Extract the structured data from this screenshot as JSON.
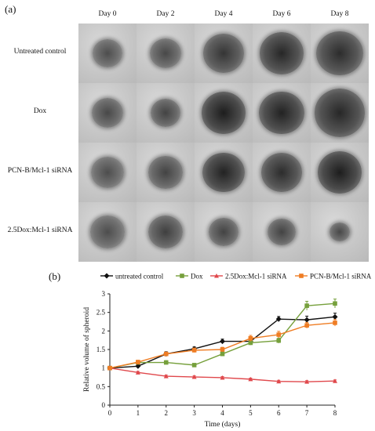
{
  "panel_a": {
    "label": "(a)",
    "days": [
      "Day 0",
      "Day 2",
      "Day 4",
      "Day 6",
      "Day 8"
    ],
    "rows": [
      {
        "label": "Untreated control",
        "size": [
          0.52,
          0.56,
          0.72,
          0.78,
          0.82
        ],
        "dark": [
          0.35,
          0.4,
          0.6,
          0.75,
          0.7
        ]
      },
      {
        "label": "Dox",
        "size": [
          0.56,
          0.54,
          0.78,
          0.8,
          0.9
        ],
        "dark": [
          0.4,
          0.45,
          0.85,
          0.8,
          0.75
        ]
      },
      {
        "label": "PCN-B/Mcl-1 siRNA",
        "size": [
          0.58,
          0.6,
          0.74,
          0.72,
          0.78
        ],
        "dark": [
          0.35,
          0.45,
          0.8,
          0.7,
          0.85
        ]
      },
      {
        "label": "2.5Dox:Mcl-1 siRNA",
        "size": [
          0.6,
          0.62,
          0.52,
          0.5,
          0.36
        ],
        "dark": [
          0.35,
          0.5,
          0.45,
          0.45,
          0.4
        ]
      }
    ]
  },
  "chart_data": {
    "type": "line",
    "panel_label": "(b)",
    "xlabel": "Time (days)",
    "ylabel": "Relative volume of spheroid",
    "x": [
      0,
      1,
      2,
      3,
      4,
      5,
      6,
      7,
      8
    ],
    "xlim": [
      0,
      8
    ],
    "ylim": [
      0,
      3
    ],
    "xticks": [
      "0",
      "1",
      "2",
      "3",
      "4",
      "5",
      "6",
      "7",
      "8"
    ],
    "yticks": [
      "0",
      "0.5",
      "1",
      "1.5",
      "2",
      "2.5",
      "3"
    ],
    "grid": false,
    "legend_position": "top",
    "series": [
      {
        "name": "untreated control",
        "color": "#111111",
        "marker": "diamond",
        "values": [
          1.0,
          1.05,
          1.38,
          1.52,
          1.72,
          1.72,
          2.32,
          2.3,
          2.38
        ],
        "errors": [
          0.03,
          0.05,
          0.06,
          0.05,
          0.06,
          0.07,
          0.07,
          0.1,
          0.1
        ]
      },
      {
        "name": "Dox",
        "color": "#76a03c",
        "marker": "square",
        "values": [
          1.0,
          1.15,
          1.15,
          1.08,
          1.38,
          1.68,
          1.74,
          2.68,
          2.74
        ],
        "errors": [
          0.03,
          0.04,
          0.05,
          0.04,
          0.06,
          0.06,
          0.07,
          0.12,
          0.12
        ]
      },
      {
        "name": "2.5Dox:Mcl-1 siRNA",
        "color": "#e0484c",
        "marker": "triangle",
        "values": [
          1.0,
          0.88,
          0.78,
          0.76,
          0.74,
          0.7,
          0.64,
          0.63,
          0.65
        ],
        "errors": [
          0.02,
          0.03,
          0.03,
          0.03,
          0.03,
          0.03,
          0.03,
          0.03,
          0.03
        ]
      },
      {
        "name": "PCN-B/Mcl-1 siRNA",
        "color": "#ef7d24",
        "marker": "square",
        "values": [
          1.0,
          1.16,
          1.38,
          1.48,
          1.5,
          1.8,
          1.9,
          2.15,
          2.22
        ],
        "errors": [
          0.03,
          0.05,
          0.05,
          0.06,
          0.06,
          0.08,
          0.09,
          0.08,
          0.09
        ]
      }
    ]
  }
}
